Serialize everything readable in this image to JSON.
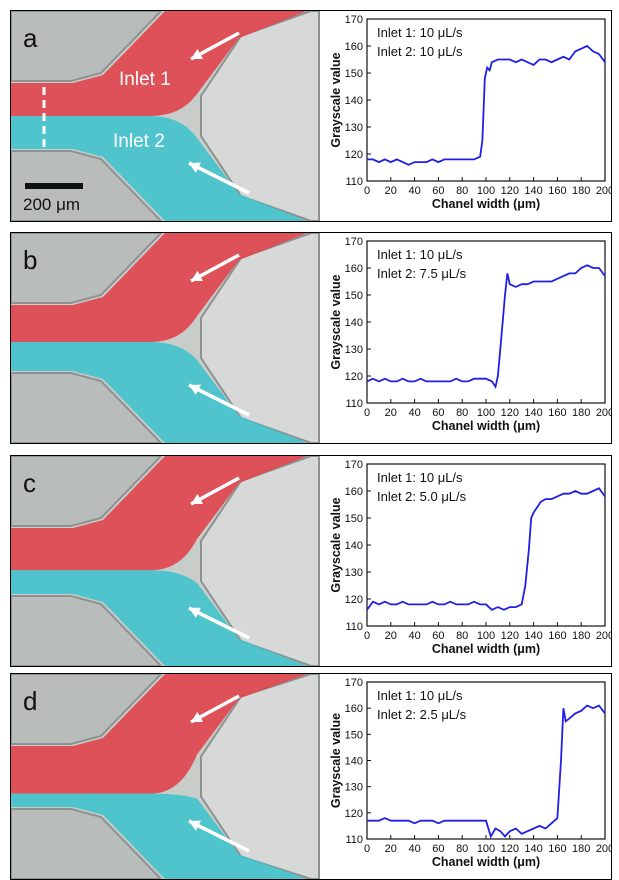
{
  "colors": {
    "red_fluid": "#e0474f",
    "cyan_fluid": "#42c3cc",
    "line": "#1f1fe6",
    "arrow": "#ffffff"
  },
  "scale_bar_label": "200 μm",
  "chart_data": [
    {
      "type": "line",
      "panel_label": "a",
      "inlet_labels": [
        "Inlet 1",
        "Inlet 2"
      ],
      "annotations": [
        "Inlet 1: 10 μL/s",
        "Inlet 2: 10 μL/s"
      ],
      "xlabel": "Chanel width (μm)",
      "ylabel": "Grayscale value",
      "xlim": [
        0,
        200
      ],
      "ylim": [
        110,
        170
      ],
      "x_ticks": [
        0,
        20,
        40,
        60,
        80,
        100,
        120,
        140,
        160,
        180,
        200
      ],
      "y_ticks": [
        110,
        120,
        130,
        140,
        150,
        160,
        170
      ],
      "series": [
        {
          "x": [
            0,
            5,
            10,
            15,
            20,
            25,
            30,
            35,
            40,
            45,
            50,
            55,
            60,
            65,
            70,
            75,
            80,
            85,
            90,
            95,
            97,
            99,
            101,
            103,
            105,
            110,
            115,
            120,
            125,
            130,
            135,
            140,
            145,
            150,
            155,
            160,
            165,
            170,
            175,
            180,
            185,
            190,
            195,
            200
          ],
          "y": [
            118,
            118,
            117,
            118,
            117,
            118,
            117,
            116,
            117,
            117,
            117,
            118,
            117,
            118,
            118,
            118,
            118,
            118,
            118,
            119,
            125,
            148,
            152,
            151,
            154,
            155,
            155,
            155,
            154,
            155,
            154,
            153,
            155,
            155,
            154,
            155,
            156,
            155,
            158,
            159,
            160,
            158,
            157,
            154
          ]
        }
      ]
    },
    {
      "type": "line",
      "panel_label": "b",
      "annotations": [
        "Inlet 1: 10 μL/s",
        "Inlet 2: 7.5 μL/s"
      ],
      "xlabel": "Chanel width (μm)",
      "ylabel": "Grayscale value",
      "xlim": [
        0,
        200
      ],
      "ylim": [
        110,
        170
      ],
      "x_ticks": [
        0,
        20,
        40,
        60,
        80,
        100,
        120,
        140,
        160,
        180,
        200
      ],
      "y_ticks": [
        110,
        120,
        130,
        140,
        150,
        160,
        170
      ],
      "series": [
        {
          "x": [
            0,
            5,
            10,
            15,
            20,
            25,
            30,
            35,
            40,
            45,
            50,
            55,
            60,
            65,
            70,
            75,
            80,
            85,
            90,
            95,
            100,
            105,
            108,
            110,
            113,
            116,
            118,
            120,
            125,
            130,
            135,
            140,
            145,
            150,
            155,
            160,
            165,
            170,
            175,
            180,
            185,
            190,
            195,
            200
          ],
          "y": [
            118,
            119,
            118,
            119,
            118,
            118,
            119,
            118,
            118,
            119,
            118,
            118,
            118,
            118,
            118,
            119,
            118,
            118,
            119,
            119,
            119,
            118,
            116,
            120,
            135,
            150,
            158,
            154,
            153,
            154,
            154,
            155,
            155,
            155,
            155,
            156,
            157,
            158,
            158,
            160,
            161,
            160,
            160,
            157
          ]
        }
      ]
    },
    {
      "type": "line",
      "panel_label": "c",
      "annotations": [
        "Inlet 1: 10 μL/s",
        "Inlet 2: 5.0 μL/s"
      ],
      "xlabel": "Chanel width (μm)",
      "ylabel": "Grayscale value",
      "xlim": [
        0,
        200
      ],
      "ylim": [
        110,
        170
      ],
      "x_ticks": [
        0,
        20,
        40,
        60,
        80,
        100,
        120,
        140,
        160,
        180,
        200
      ],
      "y_ticks": [
        110,
        120,
        130,
        140,
        150,
        160,
        170
      ],
      "series": [
        {
          "x": [
            0,
            5,
            10,
            15,
            20,
            25,
            30,
            35,
            40,
            45,
            50,
            55,
            60,
            65,
            70,
            75,
            80,
            85,
            90,
            95,
            100,
            105,
            110,
            115,
            120,
            125,
            130,
            133,
            136,
            138,
            140,
            143,
            146,
            150,
            155,
            160,
            165,
            170,
            175,
            180,
            185,
            190,
            195,
            200
          ],
          "y": [
            116,
            119,
            118,
            119,
            118,
            118,
            119,
            118,
            118,
            118,
            118,
            119,
            118,
            118,
            119,
            118,
            118,
            118,
            119,
            118,
            118,
            116,
            117,
            116,
            117,
            117,
            118,
            125,
            138,
            150,
            152,
            154,
            156,
            157,
            157,
            158,
            159,
            159,
            160,
            159,
            159,
            160,
            161,
            158
          ]
        }
      ]
    },
    {
      "type": "line",
      "panel_label": "d",
      "annotations": [
        "Inlet 1: 10 μL/s",
        "Inlet 2: 2.5 μL/s"
      ],
      "xlabel": "Chanel width (μm)",
      "ylabel": "Grayscale value",
      "xlim": [
        0,
        200
      ],
      "ylim": [
        110,
        170
      ],
      "x_ticks": [
        0,
        20,
        40,
        60,
        80,
        100,
        120,
        140,
        160,
        180,
        200
      ],
      "y_ticks": [
        110,
        120,
        130,
        140,
        150,
        160,
        170
      ],
      "series": [
        {
          "x": [
            0,
            5,
            10,
            15,
            20,
            25,
            30,
            35,
            40,
            45,
            50,
            55,
            60,
            65,
            70,
            75,
            80,
            85,
            90,
            95,
            100,
            104,
            108,
            112,
            116,
            120,
            125,
            130,
            135,
            140,
            145,
            150,
            155,
            160,
            163,
            165,
            167,
            170,
            175,
            180,
            185,
            190,
            195,
            200
          ],
          "y": [
            117,
            117,
            117,
            118,
            117,
            117,
            117,
            117,
            116,
            117,
            117,
            117,
            116,
            117,
            117,
            117,
            117,
            117,
            117,
            117,
            117,
            111,
            114,
            113,
            111,
            113,
            114,
            112,
            113,
            114,
            115,
            114,
            116,
            118,
            140,
            160,
            155,
            156,
            158,
            159,
            161,
            160,
            161,
            158
          ]
        }
      ]
    }
  ]
}
